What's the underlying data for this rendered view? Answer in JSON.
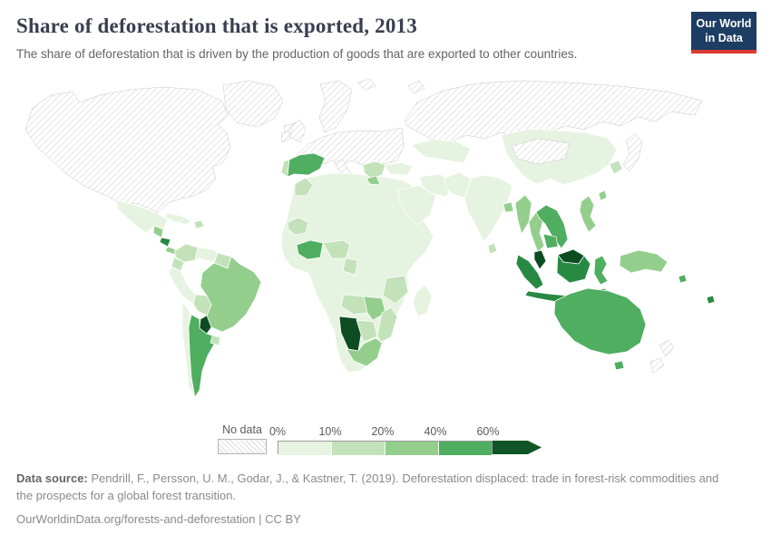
{
  "header": {
    "title": "Share of deforestation that is exported, 2013",
    "subtitle": "The share of deforestation that is driven by the production of goods that are exported to other countries.",
    "logo": {
      "line1": "Our World",
      "line2": "in Data",
      "bg_color": "#1d3d63",
      "accent_color": "#dc3a30"
    }
  },
  "legend": {
    "no_data_label": "No data",
    "tick_labels": [
      "0%",
      "10%",
      "20%",
      "40%",
      "60%"
    ],
    "segment_colors": [
      "#e7f3e1",
      "#c3e2ba",
      "#93ce8d",
      "#4fae60"
    ],
    "arrow_color": "#105525"
  },
  "map": {
    "palette": {
      "0-10": "#e7f3e1",
      "10-20": "#c3e2ba",
      "20-40": "#93ce8d",
      "40-60": "#4fae60",
      "60-75": "#278942",
      "75+": "#0d4c21"
    },
    "border_color": "#ffffff",
    "no_data_fill": "diagonal-hatch"
  },
  "chart_data": {
    "type": "heatmap",
    "title": "Share of deforestation that is exported, 2013",
    "unit": "%",
    "legend_bins": [
      "0%",
      "10%",
      "20%",
      "40%",
      "60%"
    ],
    "no_data_label": "No data",
    "regions": {
      "north-america": "no-data",
      "greenland": "no-data",
      "iceland": "no-data",
      "scandinavia": "no-data",
      "uk": "no-data",
      "ireland": "no-data",
      "central-europe": "no-data",
      "italy": "no-data",
      "russia": "no-data",
      "japan": "no-data",
      "new-zealand": "no-data",
      "arctic-islands": "no-data",
      "mongolia": "no-data",
      "china": "0-10",
      "central-asia": "0-10",
      "mexico": "0-10",
      "guatemala-honduras": "20-40",
      "nicaragua": "60-75",
      "costa-rica-panama": "20-40",
      "cuba": "0-10",
      "hispaniola": "10-20",
      "colombia": "10-20",
      "venezuela": "0-10",
      "guyanas": "10-20",
      "brazil": "20-40",
      "ecuador": "10-20",
      "peru": "0-10",
      "bolivia": "10-20",
      "chile": "0-10",
      "argentina": "40-60",
      "paraguay": "75+",
      "uruguay": "10-20",
      "africa-base": "0-10",
      "morocco": "10-20",
      "senegal-guinea": "10-20",
      "ivory-coast-ghana": "40-60",
      "nigeria": "10-20",
      "cameroon-congo": "10-20",
      "kenya-tanzania": "10-20",
      "angola": "10-20",
      "zambia-zimbabwe": "20-40",
      "namibia": "75+",
      "botswana": "10-20",
      "south-africa": "20-40",
      "mozambique": "10-20",
      "madagascar": "0-10",
      "portugal": "10-20",
      "spain": "40-60",
      "balkans": "10-20",
      "greece": "20-40",
      "turkey": "0-10",
      "arabia": "0-10",
      "iran": "0-10",
      "afghanistan-pakistan": "0-10",
      "india": "0-10",
      "sri-lanka": "10-20",
      "bangladesh": "20-40",
      "korea": "10-20",
      "taiwan": "20-40",
      "myanmar": "20-40",
      "thailand": "20-40",
      "laos-vietnam": "40-60",
      "cambodia": "40-60",
      "malaysia-peninsula": "75+",
      "sumatra": "60-75",
      "borneo-malaysia": "75+",
      "borneo-indonesia": "60-75",
      "java": "60-75",
      "sulawesi": "40-60",
      "lesser-sunda": "40-60",
      "philippines": "20-40",
      "new-guinea": "20-40",
      "solomon-islands": "40-60",
      "fiji": "60-75",
      "australia": "40-60",
      "tasmania": "40-60"
    }
  },
  "footer": {
    "source_label": "Data source:",
    "source_text": " Pendrill, F., Persson, U. M., Godar, J., & Kastner, T. (2019). Deforestation displaced: trade in forest-risk commodities and the prospects for a global forest transition.",
    "citation": "OurWorldinData.org/forests-and-deforestation | CC BY"
  }
}
